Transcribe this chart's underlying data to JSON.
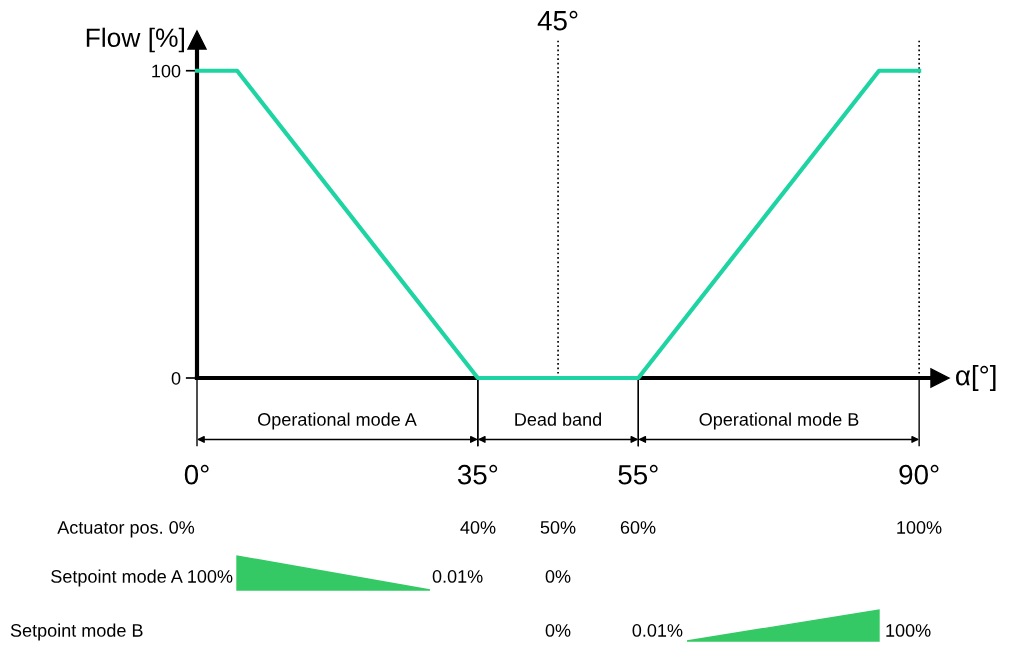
{
  "chart_data": {
    "type": "line",
    "ylabel": "Flow [%]",
    "xlabel": "α[°]",
    "x": [
      0,
      5,
      35,
      55,
      85,
      90
    ],
    "series": [
      {
        "color": "#1ed4a2",
        "values": [
          100,
          100,
          0,
          0,
          100,
          100
        ]
      }
    ],
    "xlim": [
      0,
      92.6
    ],
    "ylim": [
      0,
      110
    ],
    "xticks": [
      {
        "value": 0,
        "label": "0°"
      },
      {
        "value": 35,
        "label": "35°"
      },
      {
        "value": 55,
        "label": "55°"
      },
      {
        "value": 90,
        "label": "90°"
      }
    ],
    "yticks": [
      0,
      100
    ],
    "ref_lines": [
      {
        "axis": "x",
        "value": 45,
        "label": "45°",
        "line_style": "dotted"
      },
      {
        "axis": "x",
        "value": 90,
        "label": null,
        "line_style": "dotted"
      }
    ],
    "annotations": [
      "Operational mode A",
      "Dead band",
      "Operational mode B",
      "Actuator pos. 0%",
      "40%",
      "50%",
      "60%",
      "100%",
      "Setpoint mode A 100%",
      "0.01%",
      "0%",
      "Setpoint mode B",
      "0%",
      "0.01%",
      "100%"
    ],
    "grid": false,
    "legend": false,
    "marker": "none",
    "line_style": "solid"
  }
}
